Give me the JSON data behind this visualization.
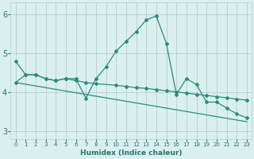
{
  "xlabel": "Humidex (Indice chaleur)",
  "x_ticks": [
    0,
    1,
    2,
    3,
    4,
    5,
    6,
    7,
    8,
    9,
    10,
    11,
    12,
    13,
    14,
    15,
    16,
    17,
    18,
    19,
    20,
    21,
    22,
    23
  ],
  "ylim": [
    2.8,
    6.3
  ],
  "xlim": [
    -0.5,
    23.5
  ],
  "yticks": [
    3,
    4,
    5,
    6
  ],
  "line1_x": [
    0,
    1,
    2,
    3,
    4,
    5,
    6,
    7,
    8,
    9,
    10,
    11,
    12,
    13,
    14,
    15,
    16,
    17,
    18,
    19,
    20,
    21,
    22,
    23
  ],
  "line1_y": [
    4.8,
    4.45,
    4.45,
    4.35,
    4.3,
    4.35,
    4.35,
    3.85,
    4.35,
    4.65,
    5.05,
    5.3,
    5.55,
    5.85,
    5.95,
    5.25,
    3.95,
    4.35,
    4.2,
    3.75,
    3.75,
    3.6,
    3.45,
    3.35
  ],
  "line2_x": [
    0,
    1,
    2,
    3,
    4,
    5,
    6,
    7,
    8,
    10,
    11,
    12,
    13,
    14,
    15,
    16,
    17,
    18,
    19,
    20,
    21,
    22,
    23
  ],
  "line2_y": [
    4.25,
    4.45,
    4.45,
    4.35,
    4.3,
    4.35,
    4.3,
    4.25,
    4.22,
    4.18,
    4.15,
    4.12,
    4.1,
    4.07,
    4.04,
    4.01,
    3.98,
    3.95,
    3.92,
    3.89,
    3.86,
    3.83,
    3.8
  ],
  "trend_x": [
    0,
    23
  ],
  "trend_y": [
    4.25,
    3.25
  ],
  "line_color": "#2e8b7a",
  "bg_color": "#d9f0ee",
  "grid_color": "#b0d0d0",
  "text_color": "#2e7070"
}
